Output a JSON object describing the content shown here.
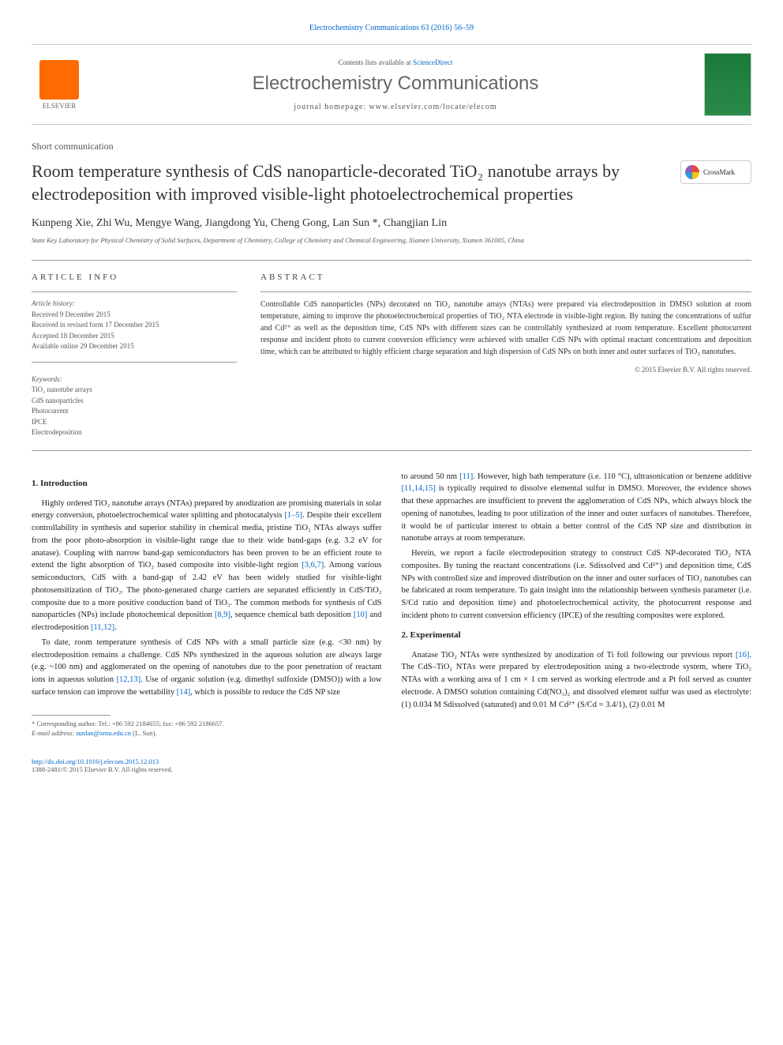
{
  "header_link": "Electrochemistry Communications 63 (2016) 56–59",
  "banner": {
    "contents_prefix": "Contents lists available at ",
    "contents_link": "ScienceDirect",
    "journal_name": "Electrochemistry Communications",
    "homepage": "journal homepage: www.elsevier.com/locate/elecom",
    "publisher_name": "ELSEVIER"
  },
  "crossmark_label": "CrossMark",
  "section_label": "Short communication",
  "title": "Room temperature synthesis of CdS nanoparticle-decorated TiO₂ nanotube arrays by electrodeposition with improved visible-light photoelectrochemical properties",
  "authors": "Kunpeng Xie, Zhi Wu, Mengye Wang, Jiangdong Yu, Cheng Gong, Lan Sun *, Changjian Lin",
  "affiliation": "State Key Laboratory for Physical Chemistry of Solid Surfaces, Department of Chemistry, College of Chemistry and Chemical Engineering, Xiamen University, Xiamen 361005, China",
  "article_info_heading": "ARTICLE INFO",
  "abstract_heading": "ABSTRACT",
  "history": {
    "label": "Article history:",
    "received": "Received 9 December 2015",
    "revised": "Received in revised form 17 December 2015",
    "accepted": "Accepted 18 December 2015",
    "online": "Available online 29 December 2015"
  },
  "keywords": {
    "label": "Keywords:",
    "items": [
      "TiO₂ nanotube arrays",
      "CdS nanoparticles",
      "Photocurrent",
      "IPCE",
      "Electrodeposition"
    ]
  },
  "abstract": "Controllable CdS nanoparticles (NPs) decorated on TiO₂ nanotube arrays (NTAs) were prepared via electrodeposition in DMSO solution at room temperature, aiming to improve the photoelectrochemical properties of TiO₂ NTA electrode in visible-light region. By tuning the concentrations of sulfur and Cd²⁺ as well as the deposition time, CdS NPs with different sizes can be controllably synthesized at room temperature. Excellent photocurrent response and incident photo to current conversion efficiency were achieved with smaller CdS NPs with optimal reactant concentrations and deposition time, which can be attributed to highly efficient charge separation and high dispersion of CdS NPs on both inner and outer surfaces of TiO₂ nanotubes.",
  "copyright": "© 2015 Elsevier B.V. All rights reserved.",
  "sections": {
    "intro_heading": "1. Introduction",
    "exp_heading": "2. Experimental"
  },
  "col1": {
    "p1_a": "Highly ordered TiO₂ nanotube arrays (NTAs) prepared by anodization are promising materials in solar energy conversion, photoelectrochemical water splitting and photocatalysis ",
    "p1_ref1": "[1–5]",
    "p1_b": ". Despite their excellent controllability in synthesis and superior stability in chemical media, pristine TiO₂ NTAs always suffer from the poor photo-absorption in visible-light range due to their wide band-gaps (e.g. 3.2 eV for anatase). Coupling with narrow band-gap semiconductors has been proven to be an efficient route to extend the light absorption of TiO₂ based composite into visible-light region ",
    "p1_ref2": "[3,6,7]",
    "p1_c": ". Among various semiconductors, CdS with a band-gap of 2.42 eV has been widely studied for visible-light photosensitization of TiO₂. The photo-generated charge carriers are separated efficiently in CdS/TiO₂ composite due to a more positive conduction band of TiO₂. The common methods for synthesis of CdS nanoparticles (NPs) include photochemical deposition ",
    "p1_ref3": "[8,9]",
    "p1_d": ", sequence chemical bath deposition ",
    "p1_ref4": "[10]",
    "p1_e": " and electrodeposition ",
    "p1_ref5": "[11,12]",
    "p1_f": ".",
    "p2_a": "To date, room temperature synthesis of CdS NPs with a small particle size (e.g. <30 nm) by electrodeposition remains a challenge. CdS NPs synthesized in the aqueous solution are always large (e.g. ~100 nm) and agglomerated on the opening of nanotubes due to the poor penetration of reactant ions in aqueous solution ",
    "p2_ref1": "[12,13]",
    "p2_b": ". Use of organic solution (e.g. dimethyl sulfoxide (DMSO)) with a low surface tension can improve the wettability ",
    "p2_ref2": "[14]",
    "p2_c": ", which is possible to reduce the CdS NP size"
  },
  "col2": {
    "p1_a": "to around 50 nm ",
    "p1_ref1": "[11]",
    "p1_b": ". However, high bath temperature (i.e. 110 °C), ultrasonication or benzene additive ",
    "p1_ref2": "[11,14,15]",
    "p1_c": " is typically required to dissolve elemental sulfur in DMSO. Moreover, the evidence shows that these approaches are insufficient to prevent the agglomeration of CdS NPs, which always block the opening of nanotubes, leading to poor utilization of the inner and outer surfaces of nanotubes. Therefore, it would be of particular interest to obtain a better control of the CdS NP size and distribution in nanotube arrays at room temperature.",
    "p2": "Herein, we report a facile electrodeposition strategy to construct CdS NP-decorated TiO₂ NTA composites. By tuning the reactant concentrations (i.e. Sdissolved and Cd²⁺) and deposition time, CdS NPs with controlled size and improved distribution on the inner and outer surfaces of TiO₂ nanotubes can be fabricated at room temperature. To gain insight into the relationship between synthesis parameter (i.e. S/Cd ratio and deposition time) and photoelectrochemical activity, the photocurrent response and incident photo to current conversion efficiency (IPCE) of the resulting composites were explored.",
    "p3_a": "Anatase TiO₂ NTAs were synthesized by anodization of Ti foil following our previous report ",
    "p3_ref1": "[16]",
    "p3_b": ". The CdS–TiO₂ NTAs were prepared by electrodeposition using a two-electrode system, where TiO₂ NTAs with a working area of 1 cm × 1 cm served as working electrode and a Pt foil served as counter electrode. A DMSO solution containing Cd(NO₃)₂ and dissolved element sulfur was used as electrolyte: (1) 0.034 M Sdissolved (saturated) and 0.01 M Cd²⁺ (S/Cd = 3.4/1), (2) 0.01 M"
  },
  "footnote": {
    "corr": "* Corresponding author. Tel.: +86 592 2184655; fax: +86 592 2186657.",
    "email_label": "E-mail address: ",
    "email": "sunlan@xmu.edu.cn",
    "email_suffix": " (L. Sun)."
  },
  "footer": {
    "doi": "http://dx.doi.org/10.1016/j.elecom.2015.12.013",
    "issn": "1388-2481/© 2015 Elsevier B.V. All rights reserved."
  },
  "colors": {
    "link": "#0066cc",
    "text": "#222222",
    "muted": "#555555",
    "elsevier_orange": "#ff6b00",
    "cover_green": "#1a7a3a"
  },
  "typography": {
    "title_fontsize": 22,
    "journal_fontsize": 24,
    "body_fontsize": 10.5,
    "abstract_fontsize": 10,
    "small_fontsize": 9
  }
}
